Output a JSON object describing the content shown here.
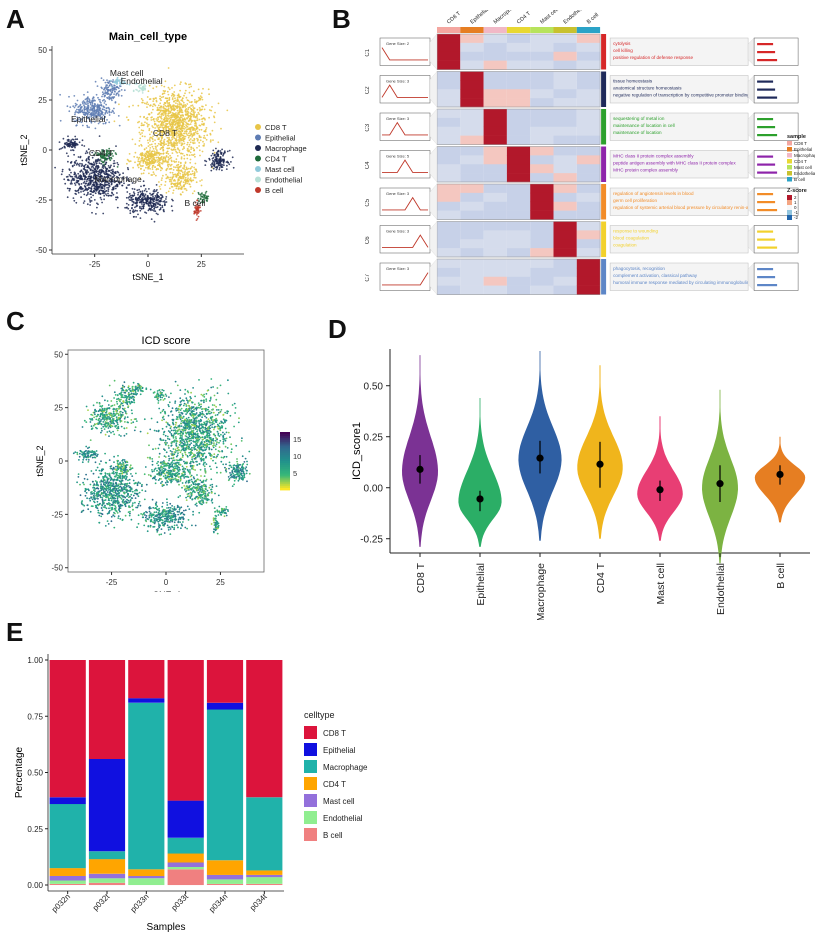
{
  "panels": {
    "A": "A",
    "B": "B",
    "C": "C",
    "D": "D",
    "E": "E"
  },
  "colors": {
    "celltypes": [
      "#E8C547",
      "#5E7CB3",
      "#1E2952",
      "#1F6B3B",
      "#8FC9DA",
      "#B7E0D6",
      "#C0392B"
    ],
    "gradient": [
      "#440154",
      "#31688E",
      "#21918C",
      "#35B779",
      "#FDE725"
    ]
  },
  "chart_data": [
    {
      "type": "scatter",
      "title": "Main_cell_type",
      "xlabel": "tSNE_1",
      "ylabel": "tSNE_2",
      "xlim": [
        -45,
        45
      ],
      "ylim": [
        -52,
        52
      ],
      "xticks": [
        "-25",
        "0",
        "25"
      ],
      "yticks": [
        "50",
        "25",
        "0",
        "-25",
        "-50"
      ],
      "legend_title": "",
      "legend": [
        "CD8 T",
        "Epithelial",
        "Macrophage",
        "CD4 T",
        "Mast cell",
        "Endothelial",
        "B cell"
      ],
      "legend_position": "right",
      "cluster_labels": [
        {
          "text": "Mast cell",
          "x": -10,
          "y": 37
        },
        {
          "text": "Endothelial",
          "x": -3,
          "y": 33
        },
        {
          "text": "Epithelial",
          "x": -28,
          "y": 14
        },
        {
          "text": "CD8 T",
          "x": 8,
          "y": 7
        },
        {
          "text": "CD4 T",
          "x": -22,
          "y": -3
        },
        {
          "text": "Macrophage",
          "x": -14,
          "y": -16
        },
        {
          "text": "B cell",
          "x": 22,
          "y": -28
        }
      ],
      "clusters": [
        {
          "name": "CD8 T",
          "cx": 13,
          "cy": 13,
          "rx": 17,
          "ry": 19,
          "n": 1100
        },
        {
          "name": "CD8 T",
          "cx": 2,
          "cy": -5,
          "rx": 10,
          "ry": 7,
          "n": 260
        },
        {
          "name": "CD8 T",
          "cx": 15,
          "cy": -14,
          "rx": 8,
          "ry": 8,
          "n": 220
        },
        {
          "name": "Epithelial",
          "cx": -26,
          "cy": 20,
          "rx": 10,
          "ry": 8,
          "n": 300
        },
        {
          "name": "Epithelial",
          "cx": -18,
          "cy": 30,
          "rx": 6,
          "ry": 6,
          "n": 120
        },
        {
          "name": "Macrophage",
          "cx": -25,
          "cy": -14,
          "rx": 14,
          "ry": 13,
          "n": 650
        },
        {
          "name": "Macrophage",
          "cx": 0,
          "cy": -26,
          "rx": 11,
          "ry": 7,
          "n": 300
        },
        {
          "name": "Macrophage",
          "cx": 33,
          "cy": -5,
          "rx": 5,
          "ry": 5,
          "n": 140
        },
        {
          "name": "Macrophage",
          "cx": -36,
          "cy": 3,
          "rx": 5,
          "ry": 3,
          "n": 80
        },
        {
          "name": "CD4 T",
          "cx": -20,
          "cy": -3,
          "rx": 5,
          "ry": 4,
          "n": 80
        },
        {
          "name": "CD4 T",
          "cx": 26,
          "cy": -24,
          "rx": 3,
          "ry": 3,
          "n": 40
        },
        {
          "name": "Mast cell",
          "cx": -13,
          "cy": 34,
          "rx": 4,
          "ry": 2,
          "n": 40
        },
        {
          "name": "Endothelial",
          "cx": -3,
          "cy": 31,
          "rx": 3,
          "ry": 3,
          "n": 40
        },
        {
          "name": "B cell",
          "cx": 23,
          "cy": -30,
          "rx": 1.5,
          "ry": 4,
          "n": 50
        }
      ]
    },
    {
      "type": "heatmap",
      "columns": [
        "CD8 T",
        "Epithelial",
        "Macrophage",
        "CD4 T",
        "Mast cell",
        "Endothelial",
        "B cell"
      ],
      "column_colors": [
        "#F4A6A0",
        "#E67E22",
        "#F1B8C6",
        "#E8D832",
        "#B7E35C",
        "#C8C12E",
        "#2BA3C7"
      ],
      "rows": [
        "C1",
        "C2",
        "C3",
        "C4",
        "C5",
        "C6",
        "C7"
      ],
      "row_colors": [
        "#D62728",
        "#1F2A5A",
        "#2CA02C",
        "#8E24AA",
        "#F28C28",
        "#F2D12C",
        "#5D86C7"
      ],
      "gene_size_labels": [
        "Gene Size: 2",
        "Gene Size: 3",
        "Gene Size: 3",
        "Gene Size: 5",
        "Gene Size: 3",
        "Gene Size: 3",
        "Gene Size: 3"
      ],
      "high_index": [
        0,
        1,
        2,
        3,
        4,
        5,
        6
      ],
      "terms": [
        [
          "cytolysis",
          "cell killing",
          "positive regulation of defense response"
        ],
        [
          "tissue homeostasis",
          "anatomical structure homeostasis",
          "negative regulation of transcription by competitive promoter binding"
        ],
        [
          "sequestering of metal ion",
          "maintenance of location in cell",
          "maintenance of location"
        ],
        [
          "MHC class II protein complex assembly",
          "peptide antigen assembly with MHC class II protein complex",
          "MHC protein complex assembly"
        ],
        [
          "regulation of angiotensin levels in blood",
          "germ cell proliferation",
          "regulation of systemic arterial blood pressure by circulatory renin-angiotensin"
        ],
        [
          "response to wounding",
          "blood coagulation",
          "coagulation"
        ],
        [
          "phagocytosis, recognition",
          "complement activation, classical pathway",
          "humoral immune response mediated by circulating immunoglobulin"
        ]
      ],
      "legend_title": "sample",
      "legend": [
        "CD8 T",
        "Epithelial",
        "Macrophage",
        "CD4 T",
        "Mast cell",
        "Endothelial",
        "B cell"
      ],
      "legend_colors": [
        "#F4A6A0",
        "#E67E22",
        "#F1B8C6",
        "#E8D832",
        "#B7E35C",
        "#C8C12E",
        "#2BA3C7"
      ],
      "scale_title": "Z-score",
      "scale_ticks": [
        "2",
        "1",
        "0",
        "-1",
        "-2"
      ]
    },
    {
      "type": "scatter",
      "title": "ICD score",
      "xlabel": "tSNE_1",
      "ylabel": "tSNE_2",
      "xlim": [
        -45,
        45
      ],
      "ylim": [
        -52,
        52
      ],
      "xticks": [
        "-25",
        "0",
        "25"
      ],
      "yticks": [
        "50",
        "25",
        "0",
        "-25",
        "-50"
      ],
      "color_scale": {
        "min": 0,
        "max": 17,
        "ticks": [
          15,
          10,
          5
        ]
      }
    },
    {
      "type": "violin",
      "ylabel": "ICD_score1",
      "ylim": [
        -0.32,
        0.68
      ],
      "yticks": [
        0.5,
        0.25,
        0.0,
        -0.25
      ],
      "ytick_labels": [
        "0.50",
        "0.25",
        "0.00",
        "-0.25"
      ],
      "categories": [
        "CD8 T",
        "Epithelial",
        "Macrophage",
        "CD4 T",
        "Mast cell",
        "Endothelial",
        "B cell"
      ],
      "colors": [
        "#7B3294",
        "#2BAE66",
        "#2F5FA3",
        "#F0B51C",
        "#E83E74",
        "#7CB342",
        "#E67E22"
      ],
      "median": [
        0.09,
        -0.055,
        0.145,
        0.115,
        -0.01,
        0.02,
        0.065
      ],
      "lo": [
        0.02,
        -0.115,
        0.07,
        0.0,
        -0.065,
        -0.07,
        0.015
      ],
      "hi": [
        0.16,
        -0.015,
        0.23,
        0.225,
        0.035,
        0.11,
        0.11
      ],
      "vmin": [
        -0.29,
        -0.29,
        -0.26,
        -0.25,
        -0.26,
        -0.37,
        -0.17
      ],
      "vmax": [
        0.65,
        0.44,
        0.67,
        0.6,
        0.35,
        0.48,
        0.25
      ],
      "mode": [
        0.08,
        -0.07,
        0.14,
        0.1,
        -0.03,
        0.0,
        0.05
      ],
      "width": [
        0.3,
        0.36,
        0.36,
        0.38,
        0.38,
        0.3,
        0.42
      ]
    },
    {
      "type": "bar",
      "stacked": true,
      "xlabel": "Samples",
      "ylabel": "Percentage",
      "ylim": [
        0,
        1
      ],
      "yticks": [
        "1.00",
        "0.75",
        "0.50",
        "0.25",
        "0.00"
      ],
      "categories": [
        "p032n",
        "p032t",
        "p033n",
        "p033t",
        "p034n",
        "p034t"
      ],
      "legend_title": "celltype",
      "legend_position": "right",
      "series": [
        {
          "name": "B cell",
          "color": "#F08080",
          "values": [
            0.005,
            0.01,
            0.0,
            0.07,
            0.005,
            0.005
          ]
        },
        {
          "name": "Endothelial",
          "color": "#90EE90",
          "values": [
            0.015,
            0.02,
            0.03,
            0.01,
            0.02,
            0.03
          ]
        },
        {
          "name": "Mast cell",
          "color": "#9370DB",
          "values": [
            0.02,
            0.02,
            0.01,
            0.02,
            0.02,
            0.01
          ]
        },
        {
          "name": "CD4 T",
          "color": "#FFA500",
          "values": [
            0.035,
            0.065,
            0.03,
            0.04,
            0.065,
            0.02
          ]
        },
        {
          "name": "Macrophage",
          "color": "#20B2AA",
          "values": [
            0.285,
            0.035,
            0.74,
            0.07,
            0.67,
            0.325
          ]
        },
        {
          "name": "Epithelial",
          "color": "#1010E0",
          "values": [
            0.03,
            0.41,
            0.02,
            0.165,
            0.03,
            0.0
          ]
        },
        {
          "name": "CD8 T",
          "color": "#DC143C",
          "values": [
            0.61,
            0.44,
            0.17,
            0.625,
            0.19,
            0.61
          ]
        }
      ]
    }
  ]
}
